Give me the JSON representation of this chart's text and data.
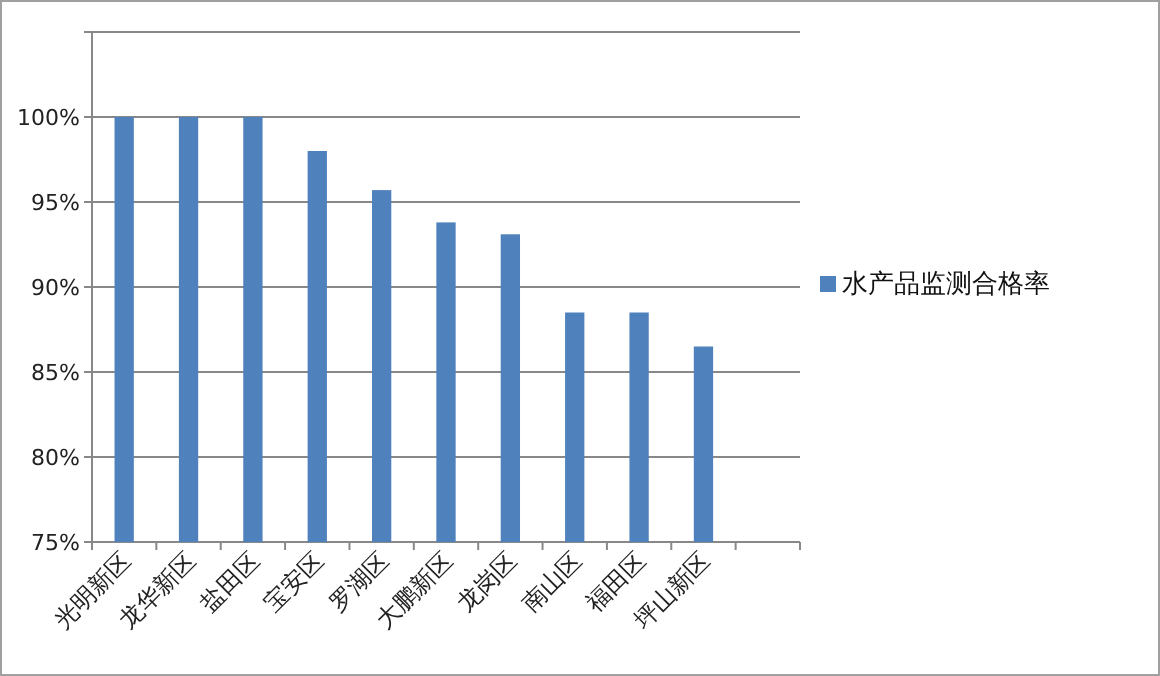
{
  "chart_data": {
    "type": "bar",
    "categories": [
      "光明新区",
      "龙华新区",
      "盐田区",
      "宝安区",
      "罗湖区",
      "大鹏新区",
      "龙岗区",
      "南山区",
      "福田区",
      "坪山新区",
      null
    ],
    "series": [
      {
        "name": "水产品监测合格率",
        "color": "#4f81bd",
        "values": [
          100,
          100,
          100,
          98,
          95.7,
          93.8,
          93.1,
          88.5,
          88.5,
          86.5,
          null
        ]
      }
    ],
    "ylim": [
      75,
      105
    ],
    "yticks": [
      {
        "value": 75,
        "label": "75%"
      },
      {
        "value": 80,
        "label": "80%"
      },
      {
        "value": 85,
        "label": "85%"
      },
      {
        "value": 90,
        "label": "90%"
      },
      {
        "value": 95,
        "label": "95%"
      },
      {
        "value": 100,
        "label": "100%"
      },
      {
        "value": 105,
        "label": null
      }
    ],
    "grid": "y",
    "legend": "right"
  }
}
